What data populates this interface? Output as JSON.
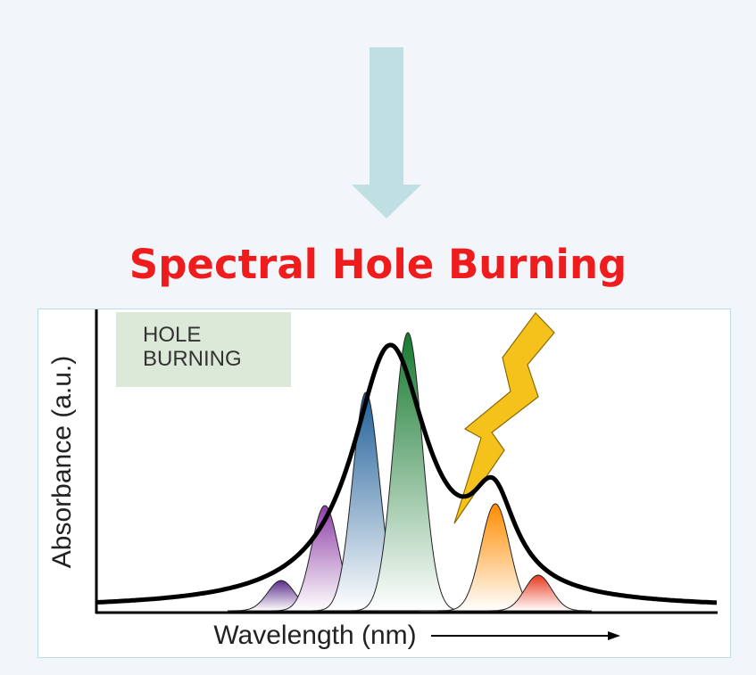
{
  "title": "Spectral Hole Burning",
  "box_label": {
    "line1": "HOLE",
    "line2": "BURNING"
  },
  "y_axis_label": "Absorbance (a.u.)",
  "x_axis_label": "Wavelength (nm)",
  "colors": {
    "title": "#ee1c1c",
    "arrow": "#bfdfe3",
    "label_box": "#dce8d8",
    "lightning": "#f5c21b",
    "peaks": [
      "#6a3d9a",
      "#8e3fa6",
      "#2c6ea5",
      "#1e8a3a",
      "#ff9a1f",
      "#e8472e"
    ]
  },
  "icons": {
    "lightning": "lightning-bolt-icon",
    "arrow": "down-arrow-icon"
  }
}
